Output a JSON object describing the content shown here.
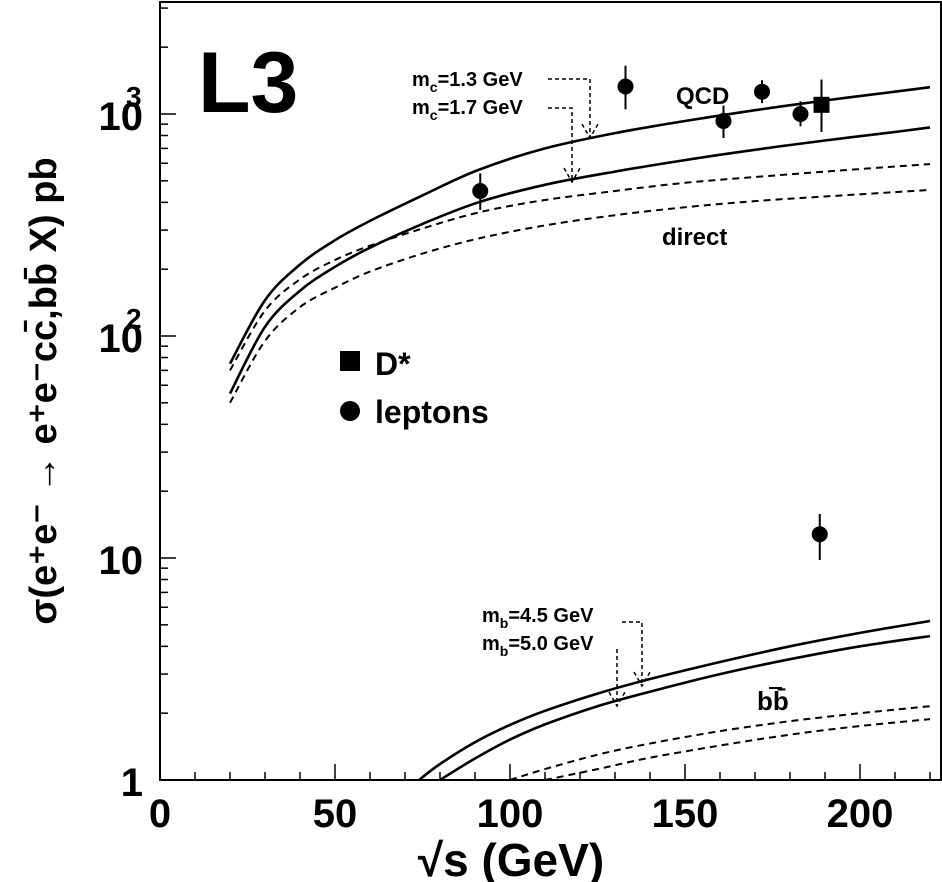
{
  "chart_data": {
    "type": "line",
    "experiment_label": "L3",
    "xlabel": "√s (GeV)",
    "ylabel": "σ(e⁺e⁻ → e⁺e⁻cc̄,bb̄ X) pb",
    "xlim": [
      0,
      220
    ],
    "ylim": [
      1,
      3000
    ],
    "log_y": true,
    "x_ticks": [
      0,
      50,
      100,
      150,
      200
    ],
    "y_ticks": [
      {
        "value": 1,
        "base": "1",
        "exp": ""
      },
      {
        "value": 10,
        "base": "10",
        "exp": ""
      },
      {
        "value": 100,
        "base": "10",
        "exp": "2"
      },
      {
        "value": 1000,
        "base": "10",
        "exp": "3"
      }
    ],
    "grid": false,
    "legend_position": "left-middle",
    "legend": [
      {
        "marker": "square",
        "label": "D*"
      },
      {
        "marker": "circle",
        "label": "leptons"
      }
    ],
    "series": [
      {
        "group": "cc",
        "style": "solid",
        "x": [
          20,
          30,
          40,
          50,
          60,
          75,
          91,
          110,
          130,
          150,
          170,
          190,
          210,
          220
        ],
        "y": [
          75,
          145,
          210,
          270,
          330,
          430,
          560,
          700,
          820,
          930,
          1040,
          1150,
          1260,
          1320
        ]
      },
      {
        "group": "cc",
        "style": "solid",
        "x": [
          20,
          30,
          40,
          50,
          60,
          75,
          91,
          110,
          130,
          150,
          170,
          190,
          210,
          220
        ],
        "y": [
          55,
          110,
          160,
          205,
          250,
          320,
          400,
          480,
          550,
          620,
          690,
          760,
          830,
          870
        ]
      },
      {
        "group": "cc",
        "style": "dashed",
        "x": [
          20,
          30,
          40,
          50,
          60,
          75,
          91,
          110,
          130,
          150,
          170,
          190,
          210,
          220
        ],
        "y": [
          70,
          130,
          180,
          220,
          255,
          305,
          360,
          410,
          450,
          490,
          520,
          550,
          580,
          595
        ]
      },
      {
        "group": "cc",
        "style": "dashed",
        "x": [
          20,
          30,
          40,
          50,
          60,
          75,
          91,
          110,
          130,
          150,
          170,
          190,
          210,
          220
        ],
        "y": [
          50,
          95,
          135,
          165,
          195,
          235,
          275,
          315,
          350,
          380,
          405,
          425,
          445,
          455
        ]
      },
      {
        "group": "bb",
        "style": "solid",
        "x": [
          74,
          80,
          90,
          100,
          110,
          125,
          140,
          160,
          180,
          200,
          220
        ],
        "y": [
          1.0,
          1.18,
          1.48,
          1.77,
          2.05,
          2.45,
          2.85,
          3.4,
          4.0,
          4.6,
          5.2
        ]
      },
      {
        "group": "bb",
        "style": "solid",
        "x": [
          80,
          90,
          100,
          110,
          125,
          140,
          160,
          180,
          200,
          220
        ],
        "y": [
          1.0,
          1.25,
          1.52,
          1.78,
          2.15,
          2.5,
          3.0,
          3.5,
          4.0,
          4.45
        ]
      },
      {
        "group": "bb",
        "style": "dashed",
        "x": [
          100,
          110,
          125,
          140,
          160,
          180,
          200,
          220
        ],
        "y": [
          1.0,
          1.12,
          1.3,
          1.46,
          1.66,
          1.84,
          2.0,
          2.15
        ]
      },
      {
        "group": "bb",
        "style": "dashed",
        "x": [
          110,
          125,
          140,
          160,
          180,
          200,
          220
        ],
        "y": [
          1.0,
          1.12,
          1.26,
          1.43,
          1.6,
          1.75,
          1.88
        ]
      }
    ],
    "points": [
      {
        "marker": "circle",
        "x": 91.5,
        "y": 450,
        "y_low": 370,
        "y_high": 540
      },
      {
        "marker": "circle",
        "x": 133,
        "y": 1330,
        "y_low": 1050,
        "y_high": 1650
      },
      {
        "marker": "circle",
        "x": 161,
        "y": 930,
        "y_low": 780,
        "y_high": 1090
      },
      {
        "marker": "circle",
        "x": 172,
        "y": 1260,
        "y_low": 1120,
        "y_high": 1420
      },
      {
        "marker": "circle",
        "x": 183,
        "y": 1000,
        "y_low": 880,
        "y_high": 1140
      },
      {
        "marker": "square",
        "x": 189,
        "y": 1100,
        "y_low": 830,
        "y_high": 1430
      },
      {
        "marker": "circle",
        "x": 188.5,
        "y": 12.8,
        "y_low": 9.8,
        "y_high": 15.8
      }
    ],
    "annotations": [
      {
        "id": "qcd",
        "text": "QCD"
      },
      {
        "id": "direct",
        "text": "direct"
      },
      {
        "id": "mc13",
        "base": "m",
        "sub": "c",
        "rest": "=1.3 GeV"
      },
      {
        "id": "mc17",
        "base": "m",
        "sub": "c",
        "rest": "=1.7 GeV"
      },
      {
        "id": "mb45",
        "base": "m",
        "sub": "b",
        "rest": "=4.5 GeV"
      },
      {
        "id": "mb50",
        "base": "m",
        "sub": "b",
        "rest": "=5.0 GeV"
      },
      {
        "id": "bb",
        "text": "bb̄"
      }
    ]
  }
}
